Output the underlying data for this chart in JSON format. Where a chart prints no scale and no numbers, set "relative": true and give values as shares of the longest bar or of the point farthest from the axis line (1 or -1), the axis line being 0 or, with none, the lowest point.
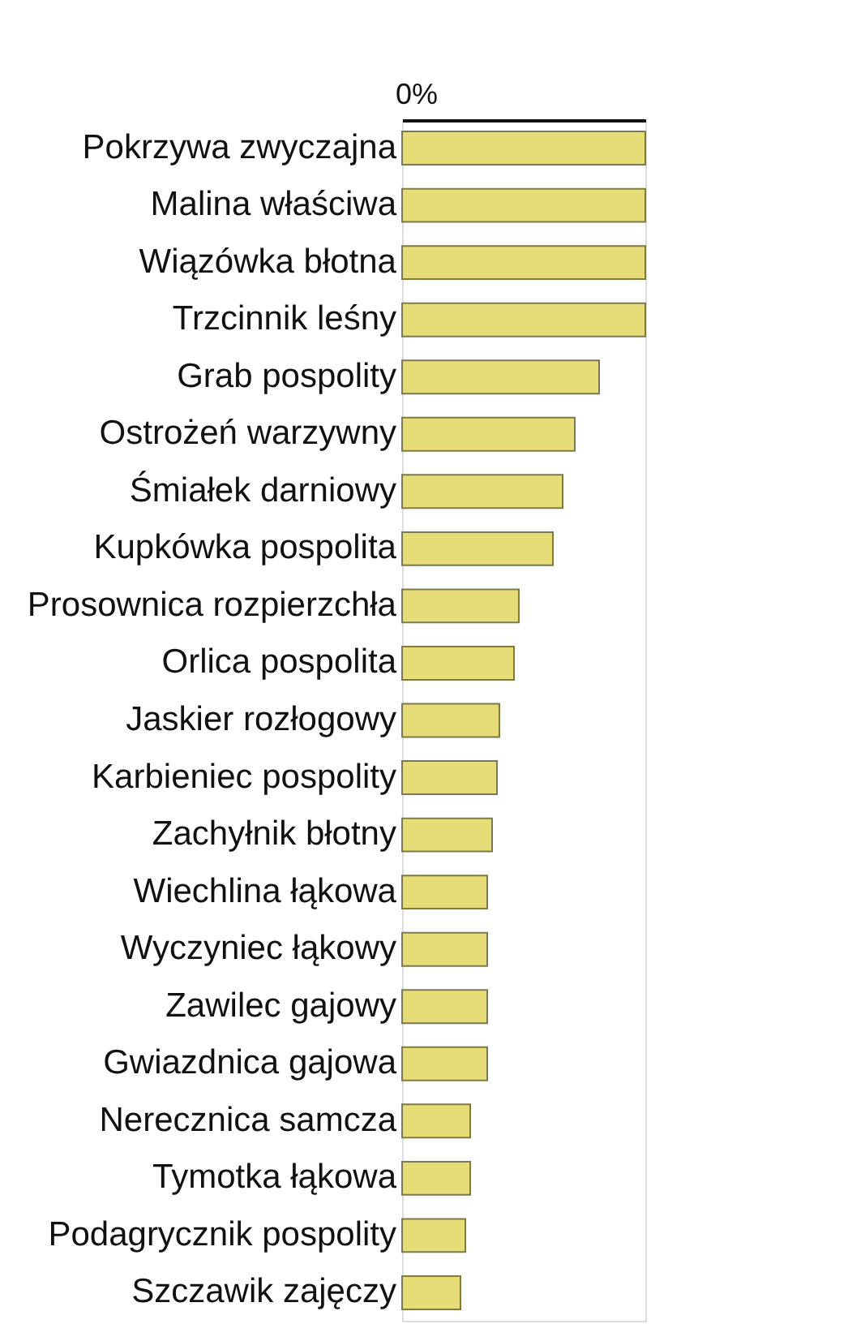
{
  "chart_data": {
    "type": "bar",
    "orientation": "horizontal",
    "relative": true,
    "annotations": [
      "0%"
    ],
    "categories": [
      "Pokrzywa zwyczajna",
      "Malina właściwa",
      "Wiązówka błotna",
      "Trzcinnik leśny",
      "Grab pospolity",
      "Ostrożeń warzywny",
      "Śmiałek darniowy",
      "Kupkówka pospolita",
      "Prosownica rozpierzchła",
      "Orlica pospolita",
      "Jaskier rozłogowy",
      "Karbieniec pospolity",
      "Zachyłnik błotny",
      "Wiechlina łąkowa",
      "Wyczyniec łąkowy",
      "Zawilec gajowy",
      "Gwiazdnica gajowa",
      "Nerecznica samcza",
      "Tymotka łąkowa",
      "Podagrycznik pospolity",
      "Szczawik zajęczy"
    ],
    "values": [
      1,
      1,
      1,
      1,
      0.81,
      0.71,
      0.66,
      0.62,
      0.48,
      0.46,
      0.4,
      0.39,
      0.37,
      0.35,
      0.35,
      0.35,
      0.35,
      0.28,
      0.28,
      0.26,
      0.24
    ],
    "color": "#e6dc78",
    "grid": false
  }
}
